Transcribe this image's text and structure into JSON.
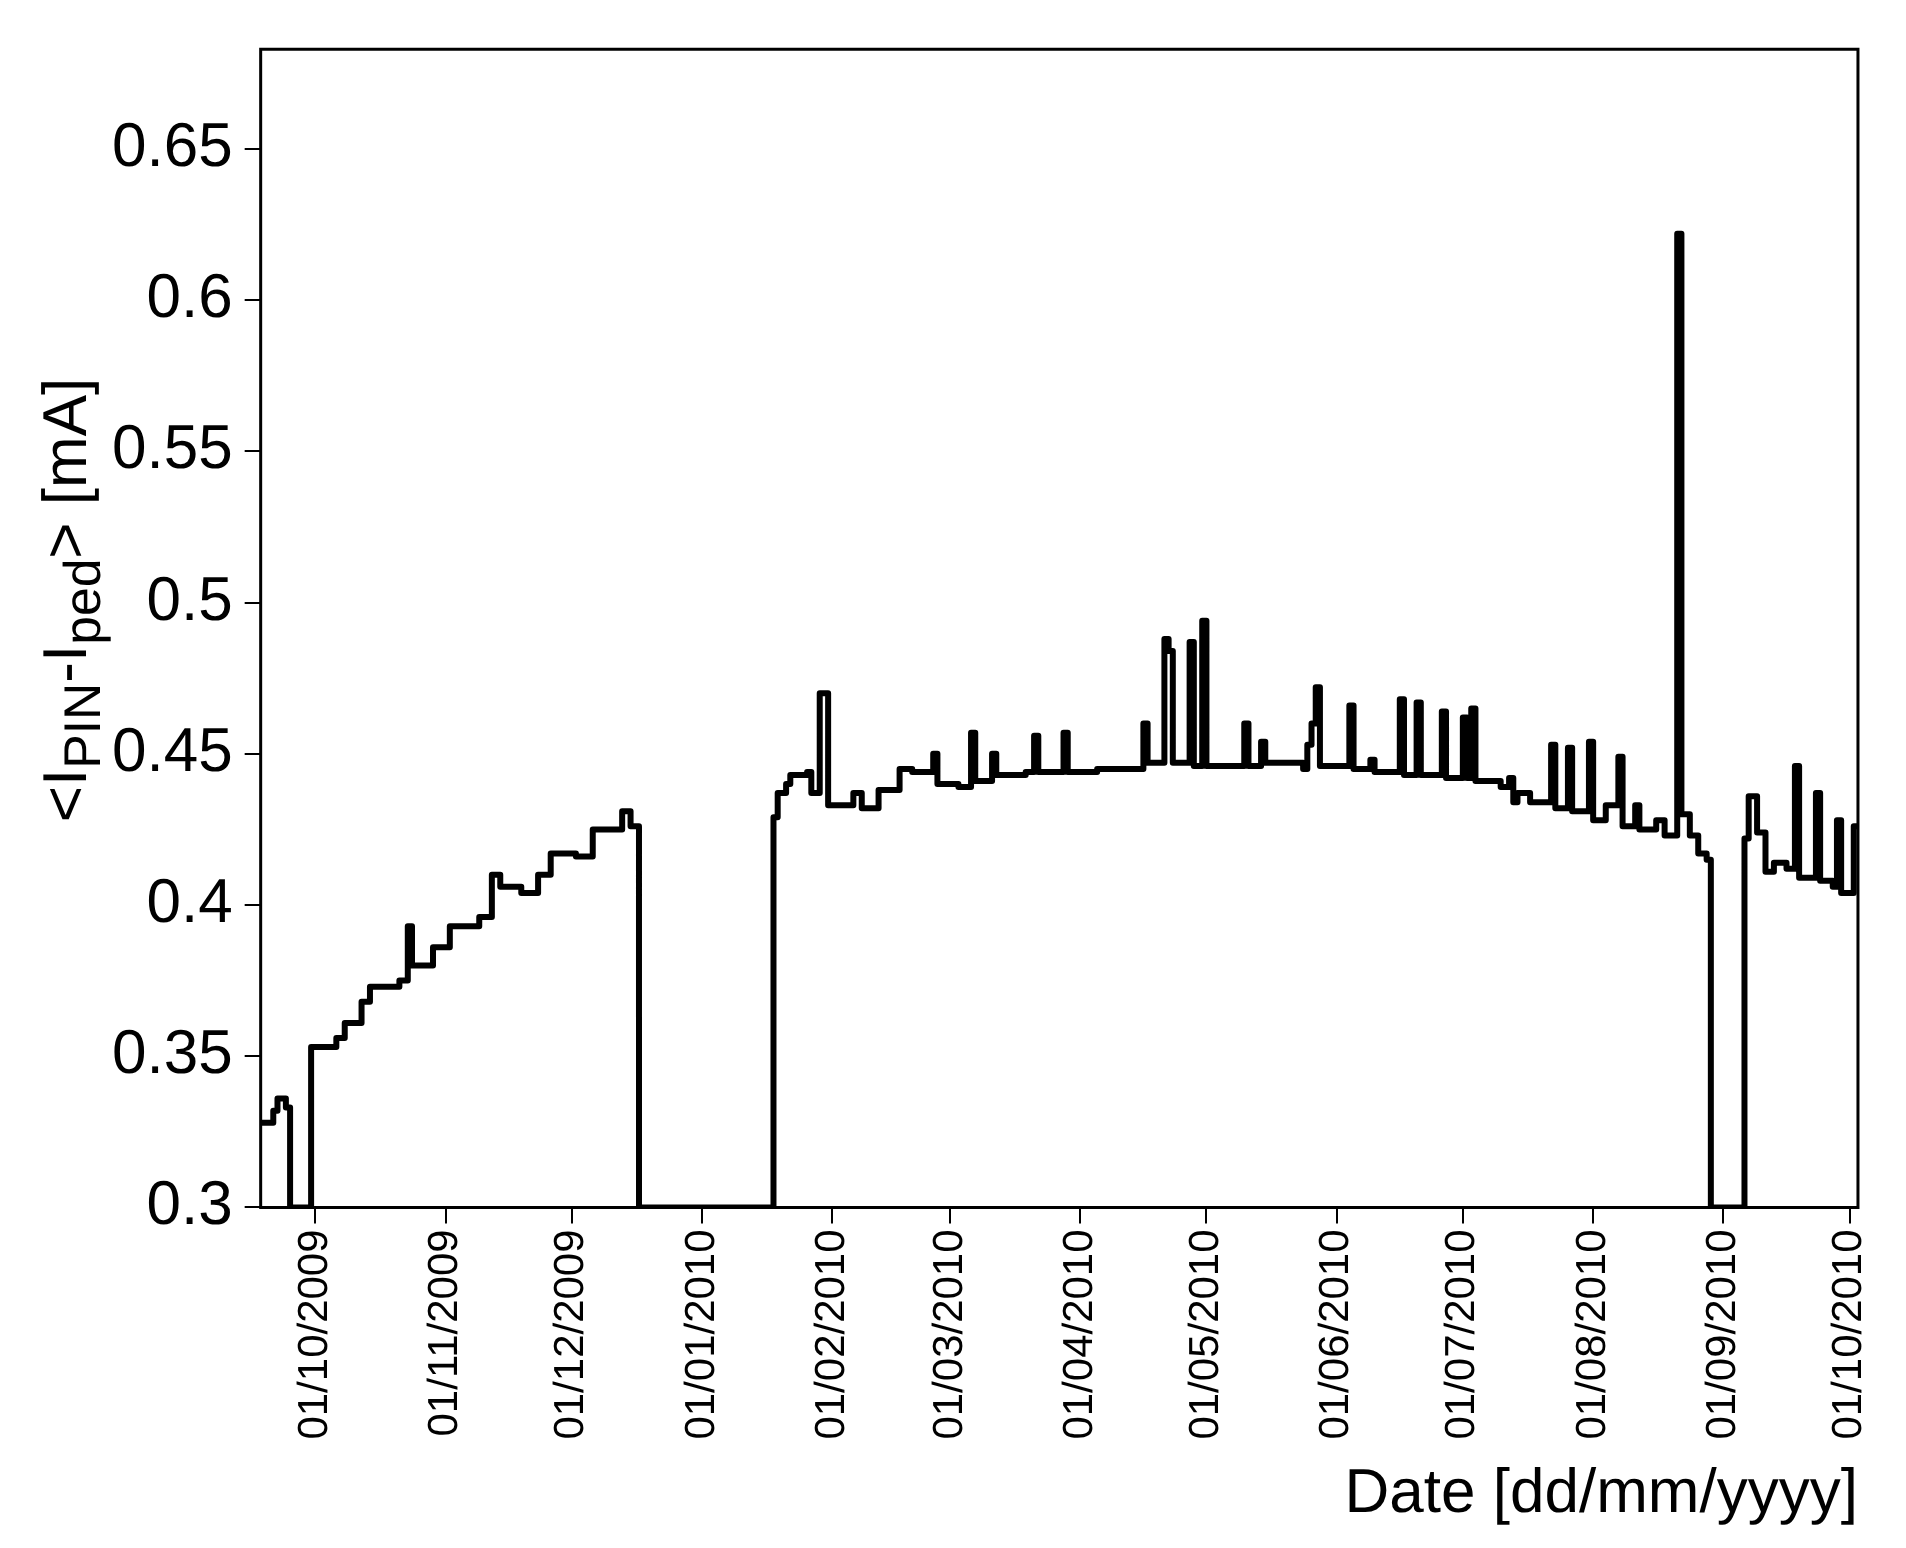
{
  "chart_data": {
    "type": "step",
    "xlabel": "Date [dd/mm/yyyy]",
    "ylabel": "<I$_{PIN}$-I$_{ped}$> [mA]",
    "x": [
      "2009-09-18",
      "2009-09-21",
      "2009-09-22",
      "2009-09-24",
      "2009-09-25",
      "2009-09-30",
      "2009-10-06",
      "2009-10-08",
      "2009-10-12",
      "2009-10-14",
      "2009-10-21",
      "2009-10-23",
      "2009-10-24",
      "2009-10-29",
      "2009-11-02",
      "2009-11-09",
      "2009-11-12",
      "2009-11-14",
      "2009-11-19",
      "2009-11-23",
      "2009-11-26",
      "2009-12-02",
      "2009-12-06",
      "2009-12-13",
      "2009-12-15",
      "2009-12-17",
      "2010-01-18",
      "2010-01-19",
      "2010-01-21",
      "2010-01-22",
      "2010-01-26",
      "2010-01-27",
      "2010-01-29",
      "2010-01-31",
      "2010-02-06",
      "2010-02-08",
      "2010-02-12",
      "2010-02-17",
      "2010-02-20",
      "2010-02-25",
      "2010-02-26",
      "2010-03-03",
      "2010-03-06",
      "2010-03-07",
      "2010-03-11",
      "2010-03-12",
      "2010-03-19",
      "2010-03-21",
      "2010-03-22",
      "2010-03-28",
      "2010-03-29",
      "2010-04-05",
      "2010-04-16",
      "2010-04-17",
      "2010-04-21",
      "2010-04-22",
      "2010-04-23",
      "2010-04-27",
      "2010-04-28",
      "2010-04-30",
      "2010-05-01",
      "2010-05-10",
      "2010-05-11",
      "2010-05-14",
      "2010-05-15",
      "2010-05-24",
      "2010-05-25",
      "2010-05-26",
      "2010-05-27",
      "2010-05-28",
      "2010-06-04",
      "2010-06-05",
      "2010-06-09",
      "2010-06-10",
      "2010-06-16",
      "2010-06-17",
      "2010-06-20",
      "2010-06-21",
      "2010-06-26",
      "2010-06-27",
      "2010-07-01",
      "2010-07-02",
      "2010-07-03",
      "2010-07-04",
      "2010-07-10",
      "2010-07-12",
      "2010-07-13",
      "2010-07-14",
      "2010-07-17",
      "2010-07-22",
      "2010-07-23",
      "2010-07-26",
      "2010-07-27",
      "2010-07-31",
      "2010-08-01",
      "2010-08-04",
      "2010-08-07",
      "2010-08-08",
      "2010-08-11",
      "2010-08-12",
      "2010-08-16",
      "2010-08-18",
      "2010-08-21",
      "2010-08-22",
      "2010-08-24",
      "2010-08-26",
      "2010-08-28",
      "2010-08-29",
      "2010-09-06",
      "2010-09-07",
      "2010-09-09",
      "2010-09-11",
      "2010-09-13",
      "2010-09-16",
      "2010-09-18",
      "2010-09-19",
      "2010-09-23",
      "2010-09-24",
      "2010-09-27",
      "2010-09-28",
      "2010-09-29",
      "2010-10-02",
      "2010-10-03"
    ],
    "values": [
      0.328,
      0.332,
      0.336,
      0.333,
      0.3,
      0.353,
      0.356,
      0.361,
      0.368,
      0.373,
      0.375,
      0.393,
      0.38,
      0.386,
      0.393,
      0.396,
      0.41,
      0.406,
      0.404,
      0.41,
      0.417,
      0.416,
      0.425,
      0.431,
      0.426,
      0.3,
      0.429,
      0.437,
      0.44,
      0.443,
      0.444,
      0.437,
      0.47,
      0.433,
      0.437,
      0.432,
      0.438,
      0.445,
      0.444,
      0.45,
      0.44,
      0.439,
      0.457,
      0.441,
      0.45,
      0.443,
      0.444,
      0.456,
      0.444,
      0.457,
      0.444,
      0.445,
      0.46,
      0.447,
      0.488,
      0.484,
      0.447,
      0.487,
      0.446,
      0.494,
      0.446,
      0.46,
      0.446,
      0.454,
      0.447,
      0.445,
      0.453,
      0.46,
      0.472,
      0.446,
      0.466,
      0.445,
      0.448,
      0.444,
      0.468,
      0.443,
      0.467,
      0.443,
      0.464,
      0.442,
      0.462,
      0.442,
      0.465,
      0.441,
      0.439,
      0.442,
      0.434,
      0.437,
      0.434,
      0.453,
      0.432,
      0.452,
      0.431,
      0.454,
      0.428,
      0.433,
      0.449,
      0.426,
      0.433,
      0.425,
      0.428,
      0.423,
      0.622,
      0.43,
      0.423,
      0.417,
      0.415,
      0.3,
      0.422,
      0.436,
      0.424,
      0.411,
      0.414,
      0.412,
      0.446,
      0.409,
      0.437,
      0.408,
      0.406,
      0.428,
      0.404,
      0.426,
      0.426
    ],
    "color": "#000000",
    "xlim": [
      "2009-09-18",
      "2010-10-03"
    ],
    "xticks": [
      {
        "value": "2009-10-01",
        "label": "01/10/2009"
      },
      {
        "value": "2009-11-01",
        "label": "01/11/2009"
      },
      {
        "value": "2009-12-01",
        "label": "01/12/2009"
      },
      {
        "value": "2010-01-01",
        "label": "01/01/2010"
      },
      {
        "value": "2010-02-01",
        "label": "01/02/2010"
      },
      {
        "value": "2010-03-01",
        "label": "01/03/2010"
      },
      {
        "value": "2010-04-01",
        "label": "01/04/2010"
      },
      {
        "value": "2010-05-01",
        "label": "01/05/2010"
      },
      {
        "value": "2010-06-01",
        "label": "01/06/2010"
      },
      {
        "value": "2010-07-01",
        "label": "01/07/2010"
      },
      {
        "value": "2010-08-01",
        "label": "01/08/2010"
      },
      {
        "value": "2010-09-01",
        "label": "01/09/2010"
      },
      {
        "value": "2010-10-01",
        "label": "01/10/2010"
      }
    ],
    "ylim": [
      0.3,
      0.683
    ],
    "yticks": [
      0.3,
      0.35,
      0.4,
      0.45,
      0.5,
      0.55,
      0.6,
      0.65
    ],
    "grid": false,
    "legend": false
  }
}
